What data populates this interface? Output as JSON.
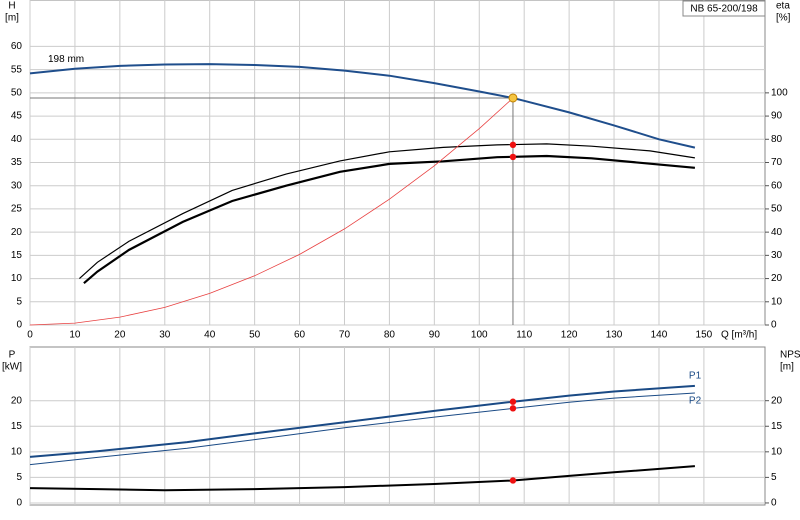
{
  "chart_data": [
    {
      "type": "line",
      "ylabel": "H",
      "yunit": "[m]",
      "y2label": "eta",
      "y2unit": "[%]",
      "xlabel": "Q [m³/h]",
      "title": "NB 65-200/198",
      "annotation": "198 mm",
      "xlim": [
        0,
        163.6
      ],
      "xticks": [
        0,
        10,
        20,
        30,
        40,
        50,
        60,
        70,
        80,
        90,
        100,
        110,
        120,
        130,
        140,
        150
      ],
      "show_xtick_labels": true,
      "ylim": [
        0,
        70
      ],
      "yticks": [
        0,
        5,
        10,
        15,
        20,
        25,
        30,
        35,
        40,
        45,
        50,
        55,
        60
      ],
      "y2lim": [
        0,
        140
      ],
      "y2ticks": [
        0,
        10,
        20,
        30,
        40,
        50,
        60,
        70,
        80,
        90,
        100
      ],
      "grid": true,
      "series": [
        {
          "color": "#1f4e8c",
          "linewidth": 2,
          "x": [
            0,
            10,
            20,
            30,
            40,
            50,
            60,
            70,
            80,
            90,
            100,
            107.5,
            110,
            120,
            130,
            140,
            148
          ],
          "values": [
            54.2,
            55.2,
            55.8,
            56.1,
            56.2,
            56.0,
            55.6,
            54.8,
            53.7,
            52.1,
            50.3,
            48.9,
            48.3,
            45.8,
            43.0,
            40.0,
            38.2
          ]
        },
        {
          "color": "#000000",
          "linewidth": 1.2,
          "axis": "y2",
          "x": [
            11,
            15,
            22,
            34,
            45,
            57,
            69,
            80,
            92,
            104,
            115,
            125,
            138,
            148
          ],
          "values": [
            20,
            27,
            36,
            48,
            58,
            65,
            70.7,
            74.6,
            76.5,
            77.6,
            78,
            77,
            75,
            72
          ]
        },
        {
          "color": "#000000",
          "linewidth": 2.2,
          "axis": "y2",
          "x": [
            12,
            15,
            22,
            34,
            45,
            57,
            69,
            80,
            92,
            104,
            115,
            125,
            138,
            148
          ],
          "values": [
            18,
            23,
            32.3,
            44.4,
            53.4,
            60,
            66,
            69.4,
            70.5,
            72.3,
            72.8,
            71.8,
            69.5,
            67.7
          ]
        },
        {
          "color": "#e84040",
          "linewidth": 0.8,
          "x": [
            0,
            10,
            20,
            30,
            40,
            50,
            60,
            70,
            80,
            90,
            100,
            107.5
          ],
          "values": [
            0,
            0.4,
            1.7,
            3.8,
            6.8,
            10.6,
            15.2,
            20.7,
            27.1,
            34.3,
            42.3,
            48.9
          ]
        }
      ],
      "markers": [
        {
          "x": 107.5,
          "y": 48.9,
          "color": "#f5c542",
          "crosshair": true
        },
        {
          "x": 107.5,
          "y": 77.6,
          "color": "#ee1111",
          "axis": "y2"
        },
        {
          "x": 107.5,
          "y": 72.4,
          "color": "#ee1111",
          "axis": "y2"
        }
      ]
    },
    {
      "type": "line",
      "ylabel": "P",
      "yunit": "[kW]",
      "y2label": "NPSH",
      "y2unit": "[m]",
      "xlim": [
        0,
        163.6
      ],
      "xticks": [
        0,
        10,
        20,
        30,
        40,
        50,
        60,
        70,
        80,
        90,
        100,
        110,
        120,
        130,
        140,
        150
      ],
      "show_xtick_labels": false,
      "ylim": [
        -0.4,
        30.5
      ],
      "yticks": [
        0,
        5,
        10,
        15,
        20
      ],
      "y2lim": [
        -0.4,
        30.5
      ],
      "y2ticks": [
        0,
        5,
        10,
        15,
        20
      ],
      "grid": true,
      "series": [
        {
          "name": "P1",
          "color": "#1a4a85",
          "linewidth": 2,
          "x": [
            0,
            15,
            35,
            50,
            70,
            90,
            107.5,
            120,
            130,
            148
          ],
          "values": [
            9.0,
            10.1,
            11.9,
            13.6,
            15.8,
            18.0,
            19.8,
            21.0,
            21.8,
            22.9
          ]
        },
        {
          "name": "P2",
          "color": "#1a4a85",
          "linewidth": 1,
          "x": [
            0,
            15,
            35,
            50,
            70,
            90,
            107.5,
            120,
            130,
            148
          ],
          "values": [
            7.5,
            8.9,
            10.7,
            12.4,
            14.7,
            16.8,
            18.5,
            19.7,
            20.5,
            21.5
          ]
        },
        {
          "color": "#000000",
          "linewidth": 2,
          "axis": "y2",
          "x": [
            0,
            15,
            30,
            50,
            70,
            90,
            107.5,
            120,
            130,
            148
          ],
          "values": [
            2.9,
            2.7,
            2.5,
            2.7,
            3.1,
            3.7,
            4.4,
            5.3,
            6.0,
            7.2
          ]
        }
      ],
      "markers": [
        {
          "x": 107.5,
          "y": 19.8,
          "color": "#ee1111"
        },
        {
          "x": 107.5,
          "y": 18.5,
          "color": "#ee1111"
        },
        {
          "x": 107.5,
          "y": 4.4,
          "color": "#ee1111",
          "axis": "y2"
        }
      ]
    }
  ]
}
